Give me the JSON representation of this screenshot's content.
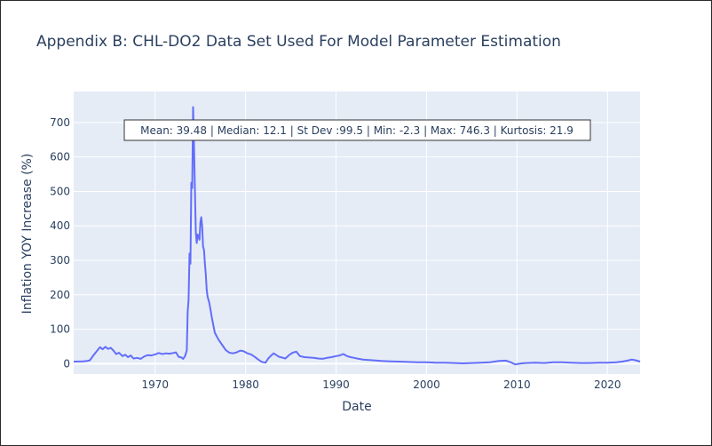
{
  "chart_data": {
    "type": "line",
    "title": "Appendix B: CHL-DO2 Data Set Used For Model Parameter Estimation",
    "xlabel": "Date",
    "ylabel": "Inflation YOY Increase (%)",
    "xlim": [
      1961.0,
      2023.6
    ],
    "ylim": [
      -30,
      790
    ],
    "x_ticks": [
      1970,
      1980,
      1990,
      2000,
      2010,
      2020
    ],
    "y_ticks": [
      0,
      100,
      200,
      300,
      400,
      500,
      600,
      700
    ],
    "grid": true,
    "series_color": "#636efa",
    "background": "#e5ecf6",
    "annotation": "Mean: 39.48 | Median: 12.1 | St Dev :99.5 | Min: -2.3 | Max: 746.3 | Kurtosis: 21.9",
    "series": [
      {
        "x": [
          1961.0,
          1962.0,
          1962.5,
          1962.8,
          1963.2,
          1963.6,
          1963.9,
          1964.2,
          1964.5,
          1964.8,
          1965.1,
          1965.4,
          1965.7,
          1966.0,
          1966.4,
          1966.7,
          1967.0,
          1967.3,
          1967.6,
          1968.0,
          1968.4,
          1968.8,
          1969.2,
          1969.6,
          1970.0,
          1970.4,
          1970.8,
          1971.2,
          1971.6,
          1972.0,
          1972.3,
          1972.6,
          1972.9,
          1973.1,
          1973.3,
          1973.5,
          1973.6,
          1973.7,
          1973.8,
          1973.9,
          1974.0,
          1974.1,
          1974.2,
          1974.3,
          1974.4,
          1974.5,
          1974.6,
          1974.7,
          1974.8,
          1974.9,
          1975.0,
          1975.1,
          1975.2,
          1975.3,
          1975.4,
          1975.5,
          1975.6,
          1975.7,
          1975.8,
          1976.0,
          1976.3,
          1976.6,
          1977.0,
          1977.4,
          1977.8,
          1978.2,
          1978.6,
          1979.0,
          1979.4,
          1979.8,
          1980.2,
          1980.6,
          1981.0,
          1981.4,
          1981.8,
          1982.2,
          1982.5,
          1982.8,
          1983.1,
          1983.4,
          1983.7,
          1984.0,
          1984.4,
          1984.8,
          1985.2,
          1985.6,
          1986.0,
          1986.5,
          1987.0,
          1987.5,
          1988.0,
          1988.5,
          1989.0,
          1989.5,
          1990.0,
          1990.4,
          1990.8,
          1991.2,
          1991.6,
          1992.0,
          1992.5,
          1993.0,
          1994.0,
          1995.0,
          1996.0,
          1997.0,
          1998.0,
          1999.0,
          2000.0,
          2001.0,
          2002.0,
          2003.0,
          2004.0,
          2005.0,
          2006.0,
          2007.0,
          2008.0,
          2008.8,
          2009.3,
          2009.8,
          2010.5,
          2011.0,
          2012.0,
          2013.0,
          2014.0,
          2015.0,
          2016.0,
          2017.0,
          2018.0,
          2019.0,
          2020.0,
          2021.0,
          2021.6,
          2022.2,
          2022.7,
          2023.1,
          2023.6
        ],
        "y": [
          6,
          7,
          8,
          10,
          25,
          38,
          48,
          42,
          49,
          43,
          46,
          38,
          28,
          32,
          22,
          26,
          19,
          24,
          15,
          17,
          14,
          21,
          25,
          24,
          27,
          31,
          28,
          30,
          29,
          31,
          33,
          20,
          18,
          14,
          22,
          38,
          150,
          185,
          320,
          290,
          525,
          510,
          745,
          640,
          500,
          380,
          350,
          375,
          370,
          360,
          410,
          425,
          400,
          340,
          330,
          290,
          260,
          215,
          195,
          175,
          130,
          90,
          70,
          55,
          40,
          32,
          30,
          33,
          38,
          36,
          30,
          27,
          20,
          12,
          5,
          3,
          15,
          23,
          30,
          25,
          20,
          18,
          15,
          25,
          32,
          35,
          22,
          19,
          18,
          17,
          15,
          14,
          17,
          19,
          22,
          24,
          28,
          22,
          19,
          17,
          14,
          12,
          10,
          8,
          7,
          6,
          5,
          4,
          4,
          3,
          3,
          2,
          1,
          2,
          3,
          4,
          8,
          9,
          4,
          -2,
          1,
          2,
          3,
          2,
          4,
          4,
          3,
          2,
          2,
          3,
          3,
          4,
          6,
          9,
          12,
          10,
          6
        ]
      }
    ]
  }
}
